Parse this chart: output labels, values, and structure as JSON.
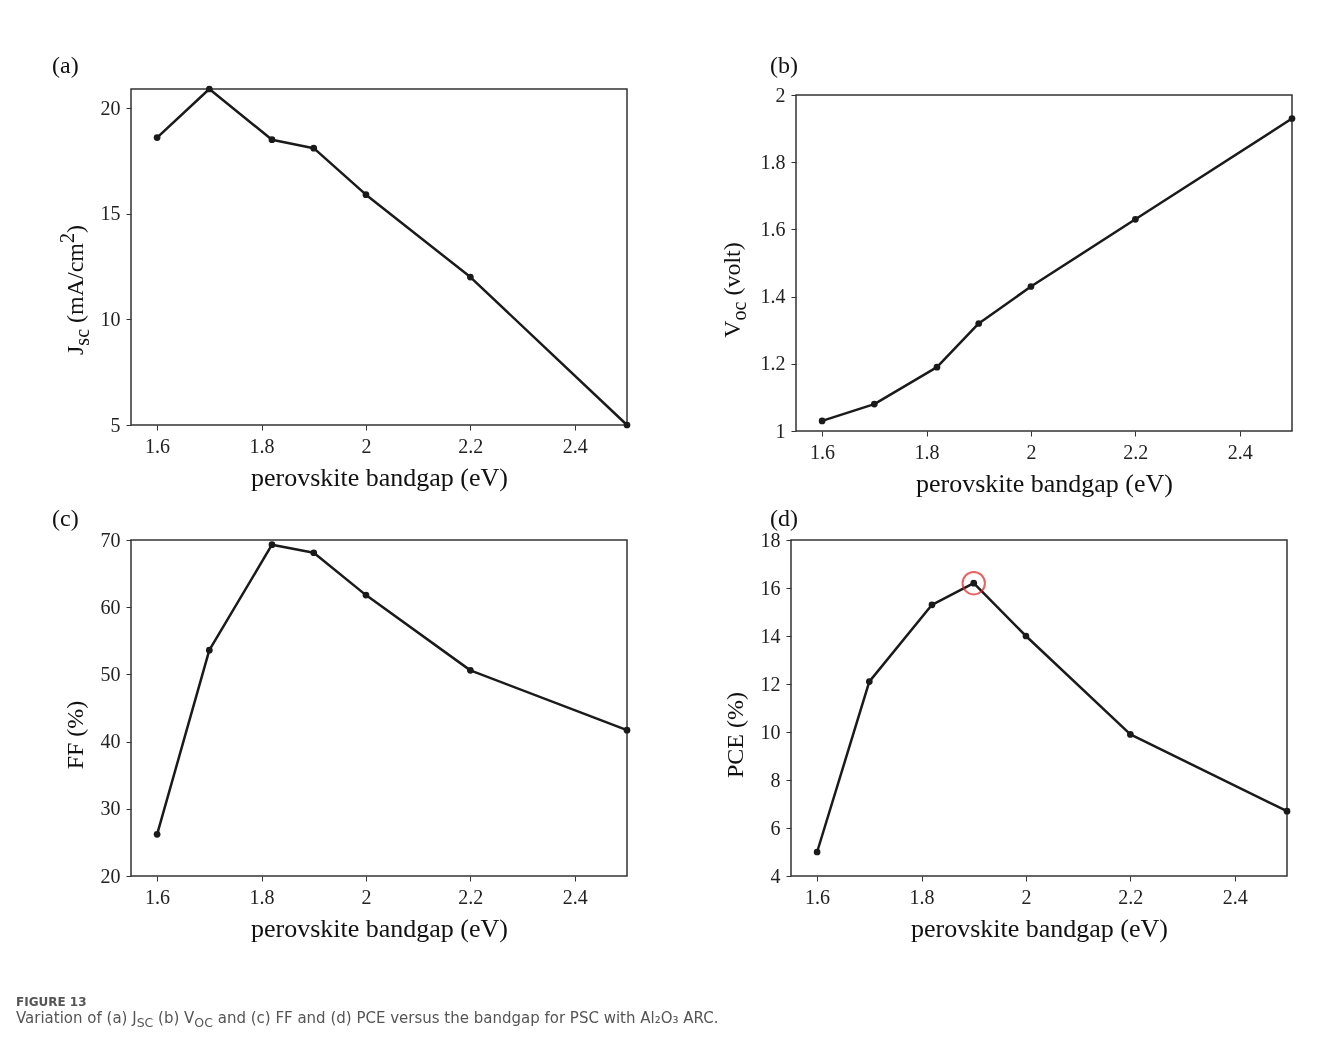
{
  "chart_data": [
    {
      "type": "line",
      "title": "(a)",
      "xlabel": "perovskite bandgap (eV)",
      "ylabel": "J$_{sc}$ (mA/cm$^{2}$)",
      "x": [
        1.6,
        1.7,
        1.82,
        1.9,
        2.0,
        2.2,
        2.5
      ],
      "xlim": [
        1.55,
        2.5
      ],
      "xticks": [
        1.6,
        1.8,
        2,
        2.2,
        2.4
      ],
      "ylim": [
        5,
        20.9
      ],
      "yticks": [
        5,
        10,
        15,
        20
      ],
      "marker": "circle",
      "grid": false,
      "series": [
        {
          "color": "#1a1a1a",
          "values": [
            18.6,
            20.9,
            18.5,
            18.1,
            15.9,
            12.0,
            5.0
          ]
        }
      ]
    },
    {
      "type": "line",
      "title": "(b)",
      "xlabel": "perovskite bandgap (eV)",
      "ylabel": "V$_{oc}$ (volt)",
      "x": [
        1.6,
        1.7,
        1.82,
        1.9,
        2.0,
        2.2,
        2.5
      ],
      "xlim": [
        1.55,
        2.5
      ],
      "xticks": [
        1.6,
        1.8,
        2,
        2.2,
        2.4
      ],
      "ylim": [
        1,
        2
      ],
      "yticks": [
        1,
        1.2,
        1.4,
        1.6,
        1.8,
        2
      ],
      "marker": "circle",
      "grid": false,
      "series": [
        {
          "color": "#1a1a1a",
          "values": [
            1.03,
            1.08,
            1.19,
            1.32,
            1.43,
            1.63,
            1.93
          ]
        }
      ]
    },
    {
      "type": "line",
      "title": "(c)",
      "xlabel": "perovskite bandgap (eV)",
      "ylabel": "FF (%)",
      "x": [
        1.6,
        1.7,
        1.82,
        1.9,
        2.0,
        2.2,
        2.5
      ],
      "xlim": [
        1.55,
        2.5
      ],
      "xticks": [
        1.6,
        1.8,
        2,
        2.2,
        2.4
      ],
      "ylim": [
        20,
        70
      ],
      "yticks": [
        20,
        30,
        40,
        50,
        60,
        70
      ],
      "marker": "circle",
      "grid": false,
      "series": [
        {
          "color": "#1a1a1a",
          "values": [
            26.2,
            53.6,
            69.3,
            68.1,
            61.8,
            50.6,
            41.7
          ]
        }
      ]
    },
    {
      "type": "line",
      "title": "(d)",
      "xlabel": "perovskite bandgap (eV)",
      "ylabel": "PCE (%)",
      "x": [
        1.6,
        1.7,
        1.82,
        1.9,
        2.0,
        2.2,
        2.5
      ],
      "xlim": [
        1.55,
        2.5
      ],
      "xticks": [
        1.6,
        1.8,
        2,
        2.2,
        2.4
      ],
      "ylim": [
        4,
        18
      ],
      "yticks": [
        4,
        6,
        8,
        10,
        12,
        14,
        16,
        18
      ],
      "marker": "circle",
      "grid": false,
      "series": [
        {
          "color": "#1a1a1a",
          "values": [
            5.0,
            12.1,
            15.3,
            16.2,
            14.0,
            9.9,
            6.7
          ]
        },
        {
          "type": "scatter",
          "color": "#e02020",
          "x": [
            1.9
          ],
          "values": [
            16.2
          ]
        }
      ],
      "annotations": [
        "FIGURE 13",
        "Variation of (a) J$_{SC}$ (b) V$_{OC}$ and (c) FF and (d) PCE versus the bandgap for PSC with Al₂O₃ ARC."
      ]
    }
  ]
}
